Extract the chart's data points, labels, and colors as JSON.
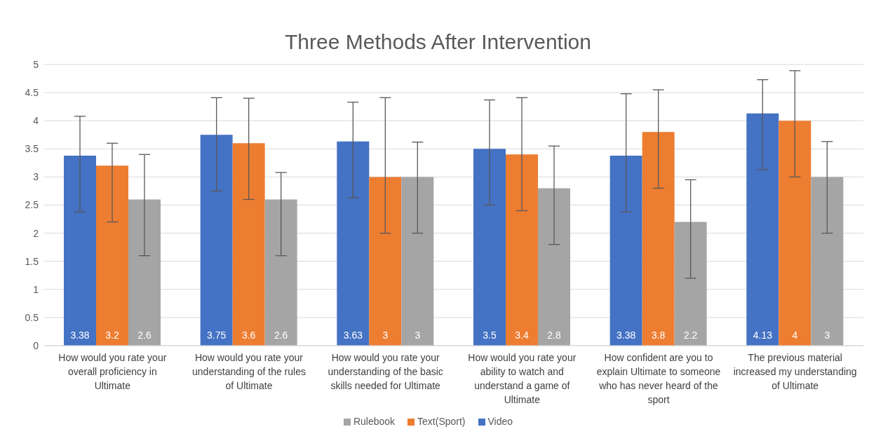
{
  "chart_data": {
    "type": "bar",
    "title": "Three Methods After Intervention",
    "categories": [
      "How would you rate your overall proficiency in Ultimate",
      "How would you rate your understanding of the rules of Ultimate",
      "How would you rate your understanding of the basic skills needed for Ultimate",
      "How would you rate your ability to watch and understand a game of Ultimate",
      "How confident are you to explain Ultimate to someone who has never heard of the sport",
      "The previous material increased my understanding of Ultimate"
    ],
    "series": [
      {
        "name": "Video",
        "color": "#4472c4",
        "values": [
          3.38,
          3.75,
          3.63,
          3.5,
          3.38,
          4.13
        ],
        "errors": [
          [
            2.38,
            4.08
          ],
          [
            2.75,
            4.41
          ],
          [
            2.63,
            4.33
          ],
          [
            2.5,
            4.37
          ],
          [
            2.38,
            4.48
          ],
          [
            3.13,
            4.73
          ]
        ]
      },
      {
        "name": "Text(Sport)",
        "color": "#ed7d31",
        "values": [
          3.2,
          3.6,
          3,
          3.4,
          3.8,
          4
        ],
        "errors": [
          [
            2.2,
            3.6
          ],
          [
            2.6,
            4.4
          ],
          [
            2.0,
            4.41
          ],
          [
            2.4,
            4.41
          ],
          [
            2.8,
            4.55
          ],
          [
            3.0,
            4.89
          ]
        ]
      },
      {
        "name": "Rulebook",
        "color": "#a5a5a5",
        "values": [
          2.6,
          2.6,
          3,
          2.8,
          2.2,
          3
        ],
        "errors": [
          [
            1.6,
            3.4
          ],
          [
            1.6,
            3.08
          ],
          [
            2.0,
            3.62
          ],
          [
            1.8,
            3.55
          ],
          [
            1.2,
            2.95
          ],
          [
            2.0,
            3.63
          ]
        ]
      }
    ],
    "ylim": [
      0,
      5
    ],
    "yticks": [
      0,
      0.5,
      1,
      1.5,
      2,
      2.5,
      3,
      3.5,
      4,
      4.5,
      5
    ],
    "grid": "y",
    "legend": "bottom",
    "data_labels": true
  }
}
